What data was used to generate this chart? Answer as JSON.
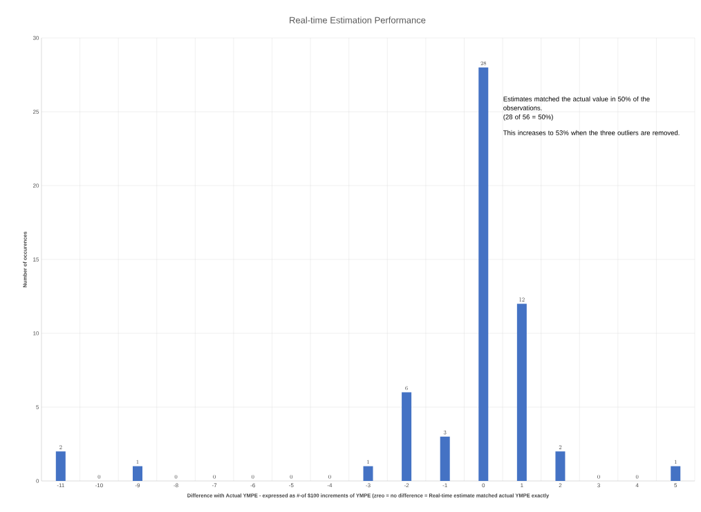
{
  "chart_data": {
    "type": "bar",
    "title": "Real-time Estimation Performance",
    "xlabel": "Difference with Actual YMPE - expressed as #-of $100 increments of YMPE (zreo = no difference = Real-time estimate matched actual YMPE exactly",
    "ylabel": "Number of occurences",
    "categories": [
      "-11",
      "-10",
      "-9",
      "-8",
      "-7",
      "-6",
      "-5",
      "-4",
      "-3",
      "-2",
      "-1",
      "0",
      "1",
      "2",
      "3",
      "4",
      "5"
    ],
    "values": [
      2,
      0,
      1,
      0,
      0,
      0,
      0,
      0,
      1,
      6,
      3,
      28,
      12,
      2,
      0,
      0,
      1
    ],
    "color": "#4472c4",
    "ylim": [
      0,
      30
    ],
    "yticks": [
      0,
      5,
      10,
      15,
      20,
      25,
      30
    ],
    "grid": true,
    "data_labels": true,
    "annotations": [
      "Estimates matched the actual value in 50% of the observations.",
      "(28 of 56 = 50%)",
      "This increases to 53% when the three outliers are removed."
    ]
  }
}
